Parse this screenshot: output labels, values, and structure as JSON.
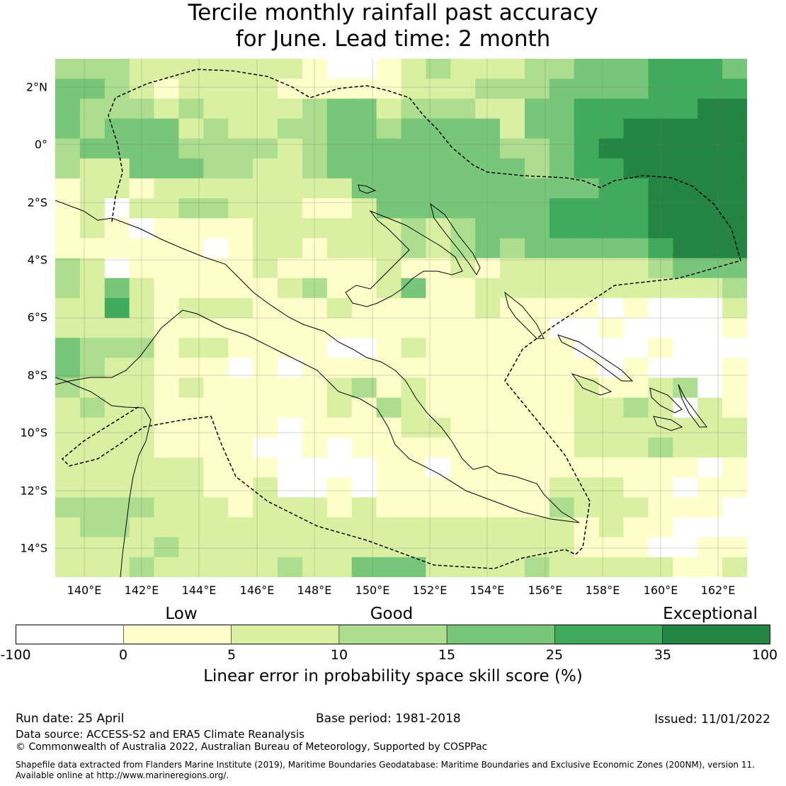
{
  "title_line1": "Tercile monthly rainfall past accuracy",
  "title_line2": "for June. Lead time: 2 month",
  "lat_ticks": [
    "2°N",
    "0°",
    "2°S",
    "4°S",
    "6°S",
    "8°S",
    "10°S",
    "12°S",
    "14°S"
  ],
  "lon_ticks": [
    "140°E",
    "142°E",
    "144°E",
    "146°E",
    "148°E",
    "150°E",
    "152°E",
    "154°E",
    "156°E",
    "158°E",
    "160°E",
    "162°E"
  ],
  "legend": {
    "categories": [
      "Low",
      "Good",
      "Exceptional"
    ],
    "ticks": [
      "-100",
      "0",
      "5",
      "10",
      "15",
      "25",
      "35",
      "100"
    ],
    "colors": [
      "#ffffff",
      "#ffffcc",
      "#d9f0a3",
      "#addd8e",
      "#78c679",
      "#41ab5d",
      "#238443"
    ],
    "title": "Linear error in probability space skill score (%)"
  },
  "grid_rows": [
    "3332222222100123222334445554",
    "4432122221111122233344445555",
    "4333232222344233322445555566",
    "4344423223344344442445566666",
    "3444433332344444443345666666",
    "3224443322344444444345566666",
    "1221222222224444444444556666",
    "1202233222112444444455556666",
    "1210111122222232344455556666",
    "1111110122122232343444445666",
    "3201111121111211212222223444",
    "3242111112311241122222222223",
    "2252122211121111121111010002",
    "2222111111111111111100100001",
    "4333122111100121111110001000",
    "4322111010111111111111010001",
    "3222121111123121111112112301",
    "2322111111121321111112232021",
    "2222111110111122111112222222",
    "2222111100101111111112223222",
    "2222221110000110111111111101",
    "2222221120010111111122211011",
    "3333222122212111111132221110",
    "2332222222222222222221211000",
    "2222322222222222222221110011",
    "2223222223224442222322222112"
  ],
  "footer": {
    "run_date": "Run date: 25 April",
    "base_period": "Base period: 1981-2018",
    "issued": "Issued: 11/01/2022",
    "data_source": "Data source: ACCESS-S2 and ERA5 Climate Reanalysis",
    "copyright": "© Commonwealth of Australia 2022, Australian Bureau of Meteorology, Supported by COSPPac",
    "shapefile_1": "Shapefile data extracted from Flanders Marine Institute (2019), Maritime Boundaries Geodatabase: Maritime Boundaries and Exclusive Economic Zones (200NM), version 11.",
    "shapefile_2": "Available online at http://www.marineregions.org/."
  }
}
